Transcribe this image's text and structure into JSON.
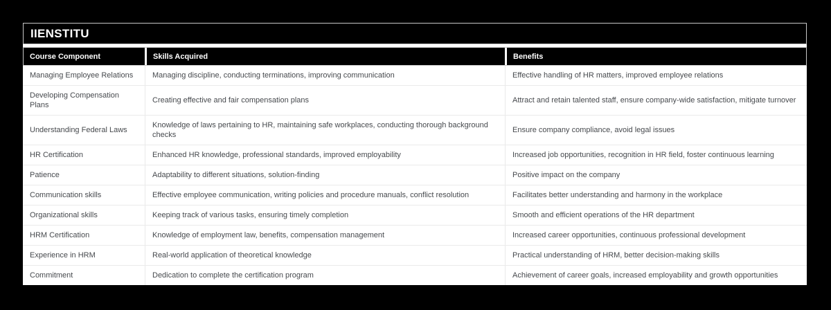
{
  "brand": {
    "title": "IIENSTITU"
  },
  "colors": {
    "canvas_bg": "#000000",
    "panel_bg": "#ffffff",
    "header_bg": "#000000",
    "header_text": "#ffffff",
    "body_text": "#46494d",
    "separator": "#eaeaea",
    "frame_border": "#c9c9c9"
  },
  "table": {
    "columns": [
      "Course Component",
      "Skills Acquired",
      "Benefits"
    ],
    "rows": [
      {
        "component": "Managing Employee Relations",
        "skills": "Managing discipline, conducting terminations, improving communication",
        "benefits": "Effective handling of HR matters, improved employee relations"
      },
      {
        "component": "Developing Compensation Plans",
        "skills": "Creating effective and fair compensation plans",
        "benefits": "Attract and retain talented staff, ensure company-wide satisfaction, mitigate turnover"
      },
      {
        "component": "Understanding Federal Laws",
        "skills": "Knowledge of laws pertaining to HR, maintaining safe workplaces, conducting thorough background checks",
        "benefits": "Ensure company compliance, avoid legal issues"
      },
      {
        "component": "HR Certification",
        "skills": "Enhanced HR knowledge, professional standards, improved employability",
        "benefits": "Increased job opportunities, recognition in HR field, foster continuous learning"
      },
      {
        "component": "Patience",
        "skills": "Adaptability to different situations, solution-finding",
        "benefits": "Positive impact on the company"
      },
      {
        "component": "Communication skills",
        "skills": "Effective employee communication, writing policies and procedure manuals, conflict resolution",
        "benefits": "Facilitates better understanding and harmony in the workplace"
      },
      {
        "component": "Organizational skills",
        "skills": "Keeping track of various tasks, ensuring timely completion",
        "benefits": "Smooth and efficient operations of the HR department"
      },
      {
        "component": "HRM Certification",
        "skills": "Knowledge of employment law, benefits, compensation management",
        "benefits": "Increased career opportunities, continuous professional development"
      },
      {
        "component": "Experience in HRM",
        "skills": "Real-world application of theoretical knowledge",
        "benefits": "Practical understanding of HRM, better decision-making skills"
      },
      {
        "component": "Commitment",
        "skills": "Dedication to complete the certification program",
        "benefits": "Achievement of career goals, increased employability and growth opportunities"
      }
    ]
  },
  "chart_data": {
    "type": "table",
    "title": "IIENSTITU",
    "columns": [
      "Course Component",
      "Skills Acquired",
      "Benefits"
    ],
    "rows": [
      [
        "Managing Employee Relations",
        "Managing discipline, conducting terminations, improving communication",
        "Effective handling of HR matters, improved employee relations"
      ],
      [
        "Developing Compensation Plans",
        "Creating effective and fair compensation plans",
        "Attract and retain talented staff, ensure company-wide satisfaction, mitigate turnover"
      ],
      [
        "Understanding Federal Laws",
        "Knowledge of laws pertaining to HR, maintaining safe workplaces, conducting thorough background checks",
        "Ensure company compliance, avoid legal issues"
      ],
      [
        "HR Certification",
        "Enhanced HR knowledge, professional standards, improved employability",
        "Increased job opportunities, recognition in HR field, foster continuous learning"
      ],
      [
        "Patience",
        "Adaptability to different situations, solution-finding",
        "Positive impact on the company"
      ],
      [
        "Communication skills",
        "Effective employee communication, writing policies and procedure manuals, conflict resolution",
        "Facilitates better understanding and harmony in the workplace"
      ],
      [
        "Organizational skills",
        "Keeping track of various tasks, ensuring timely completion",
        "Smooth and efficient operations of the HR department"
      ],
      [
        "HRM Certification",
        "Knowledge of employment law, benefits, compensation management",
        "Increased career opportunities, continuous professional development"
      ],
      [
        "Experience in HRM",
        "Real-world application of theoretical knowledge",
        "Practical understanding of HRM, better decision-making skills"
      ],
      [
        "Commitment",
        "Dedication to complete the certification program",
        "Achievement of career goals, increased employability and growth opportunities"
      ]
    ]
  }
}
